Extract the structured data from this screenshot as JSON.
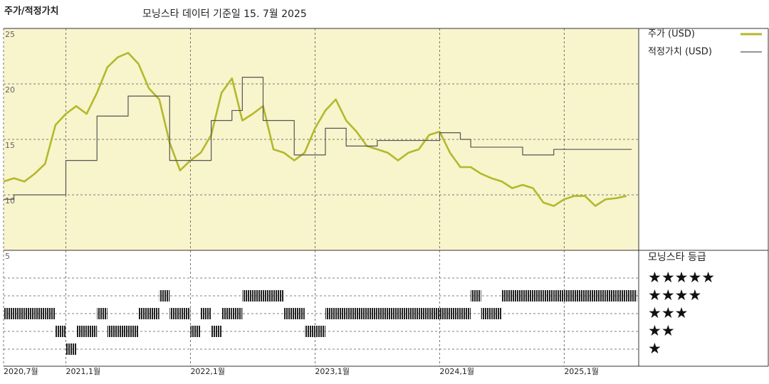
{
  "chart_data": {
    "type": "line",
    "title": "주가/적정가치",
    "subtitle": "모닝스타 데이터 기준일 15. 7월 2025",
    "x": [
      "2020-07",
      "2020-08",
      "2020-09",
      "2020-10",
      "2020-11",
      "2020-12",
      "2021-01",
      "2021-02",
      "2021-03",
      "2021-04",
      "2021-05",
      "2021-06",
      "2021-07",
      "2021-08",
      "2021-09",
      "2021-10",
      "2021-11",
      "2021-12",
      "2022-01",
      "2022-02",
      "2022-03",
      "2022-04",
      "2022-05",
      "2022-06",
      "2022-07",
      "2022-08",
      "2022-09",
      "2022-10",
      "2022-11",
      "2022-12",
      "2023-01",
      "2023-02",
      "2023-03",
      "2023-04",
      "2023-05",
      "2023-06",
      "2023-07",
      "2023-08",
      "2023-09",
      "2023-10",
      "2023-11",
      "2023-12",
      "2024-01",
      "2024-02",
      "2024-03",
      "2024-04",
      "2024-05",
      "2024-06",
      "2024-07",
      "2024-08",
      "2024-09",
      "2024-10",
      "2024-11",
      "2024-12",
      "2025-01",
      "2025-02",
      "2025-03",
      "2025-04",
      "2025-05",
      "2025-06",
      "2025-07"
    ],
    "series": [
      {
        "name": "주가 (USD)",
        "color": "#b4b82c",
        "step": false,
        "values": [
          11.2,
          11.5,
          11.2,
          11.9,
          12.8,
          16.3,
          17.3,
          18,
          17.3,
          19.2,
          21.5,
          22.4,
          22.8,
          21.8,
          19.6,
          18.6,
          14.7,
          12.2,
          13.1,
          13.8,
          15.4,
          19.2,
          20.5,
          16.7,
          17.3,
          18,
          14.1,
          13.8,
          13.1,
          13.8,
          16,
          17.6,
          18.6,
          16.7,
          15.7,
          14.4,
          14.1,
          13.8,
          13.1,
          13.8,
          14.1,
          15.4,
          15.7,
          13.8,
          12.5,
          12.5,
          11.9,
          11.5,
          11.2,
          10.6,
          10.9,
          10.6,
          9.3,
          9,
          9.6,
          9.9,
          9.9,
          9,
          9.6,
          9.7,
          9.9
        ]
      },
      {
        "name": "적정가치 (USD)",
        "color": "#555555",
        "step": true,
        "values": [
          9.6,
          10,
          10,
          10,
          10,
          10,
          13.1,
          13.1,
          13.1,
          17.1,
          17.1,
          17.1,
          18.9,
          18.9,
          18.9,
          18.9,
          13.1,
          13.1,
          13.1,
          13.1,
          16.7,
          16.7,
          17.6,
          20.6,
          20.6,
          16.7,
          16.7,
          16.7,
          13.6,
          13.6,
          13.6,
          16,
          16,
          14.4,
          14.4,
          14.4,
          14.9,
          14.9,
          14.9,
          14.9,
          14.9,
          14.9,
          15.6,
          15.6,
          15,
          14.3,
          14.3,
          14.3,
          14.3,
          14.3,
          13.6,
          13.6,
          13.6,
          14.1,
          14.1,
          14.1,
          14.1,
          14.1,
          14.1,
          14.1,
          14.1
        ]
      }
    ],
    "ylim": [
      5,
      25
    ],
    "yticks": [
      5,
      10,
      15,
      20,
      25
    ],
    "xticks": [
      {
        "value": "2020-07",
        "label": "2020,7월"
      },
      {
        "value": "2021-01",
        "label": "2021,1월"
      },
      {
        "value": "2022-01",
        "label": "2022,1월"
      },
      {
        "value": "2023-01",
        "label": "2023,1월"
      },
      {
        "value": "2024-01",
        "label": "2024,1월"
      },
      {
        "value": "2025-01",
        "label": "2025,1월"
      }
    ],
    "background": "#f8f4cc",
    "ratings": {
      "title": "모닝스타 등급",
      "levels": [
        "★",
        "★★",
        "★★★",
        "★★★★",
        "★★★★★"
      ],
      "color": "#222222",
      "values": [
        3,
        3,
        3,
        3,
        3,
        2,
        1,
        2,
        2,
        3,
        2,
        2,
        2,
        3,
        3,
        4,
        3,
        3,
        2,
        3,
        2,
        3,
        3,
        4,
        4,
        4,
        4,
        3,
        3,
        2,
        2,
        3,
        3,
        3,
        3,
        3,
        3,
        3,
        3,
        3,
        3,
        3,
        3,
        3,
        3,
        4,
        3,
        3,
        4,
        4,
        4,
        4,
        4,
        4,
        4,
        4,
        4,
        4,
        4,
        4,
        4
      ]
    }
  }
}
